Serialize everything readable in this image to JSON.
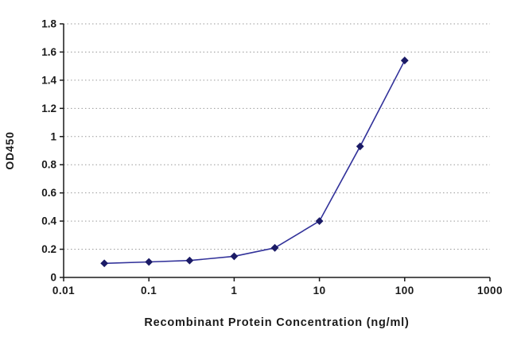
{
  "chart_data": {
    "type": "line",
    "title": "",
    "xlabel": "Recombinant Protein Concentration (ng/ml)",
    "ylabel": "OD450",
    "x_scale": "log",
    "xlim": [
      0.01,
      1000
    ],
    "ylim": [
      0,
      1.8
    ],
    "x": [
      0.03,
      0.1,
      0.3,
      1,
      3,
      10,
      30,
      100
    ],
    "y": [
      0.1,
      0.11,
      0.12,
      0.15,
      0.21,
      0.4,
      0.93,
      1.54
    ],
    "x_tick_values": [
      0.01,
      0.1,
      1,
      10,
      100,
      1000
    ],
    "x_tick_labels": [
      "0.01",
      "0.1",
      "1",
      "10",
      "100",
      "1000"
    ],
    "y_tick_values": [
      0,
      0.2,
      0.4,
      0.6,
      0.8,
      1,
      1.2,
      1.4,
      1.6,
      1.8
    ],
    "y_tick_labels": [
      "0",
      "0.2",
      "0.4",
      "0.6",
      "0.8",
      "1",
      "1.2",
      "1.4",
      "1.6",
      "1.8"
    ],
    "grid": "horizontal-dotted",
    "legend": "none",
    "marker": "diamond",
    "colors": {
      "line": "#32329a",
      "marker": "#1b1b66",
      "grid": "#9a9a9a",
      "axis": "#1a1a1a",
      "text": "#1a1a1a",
      "background": "#ffffff"
    }
  }
}
